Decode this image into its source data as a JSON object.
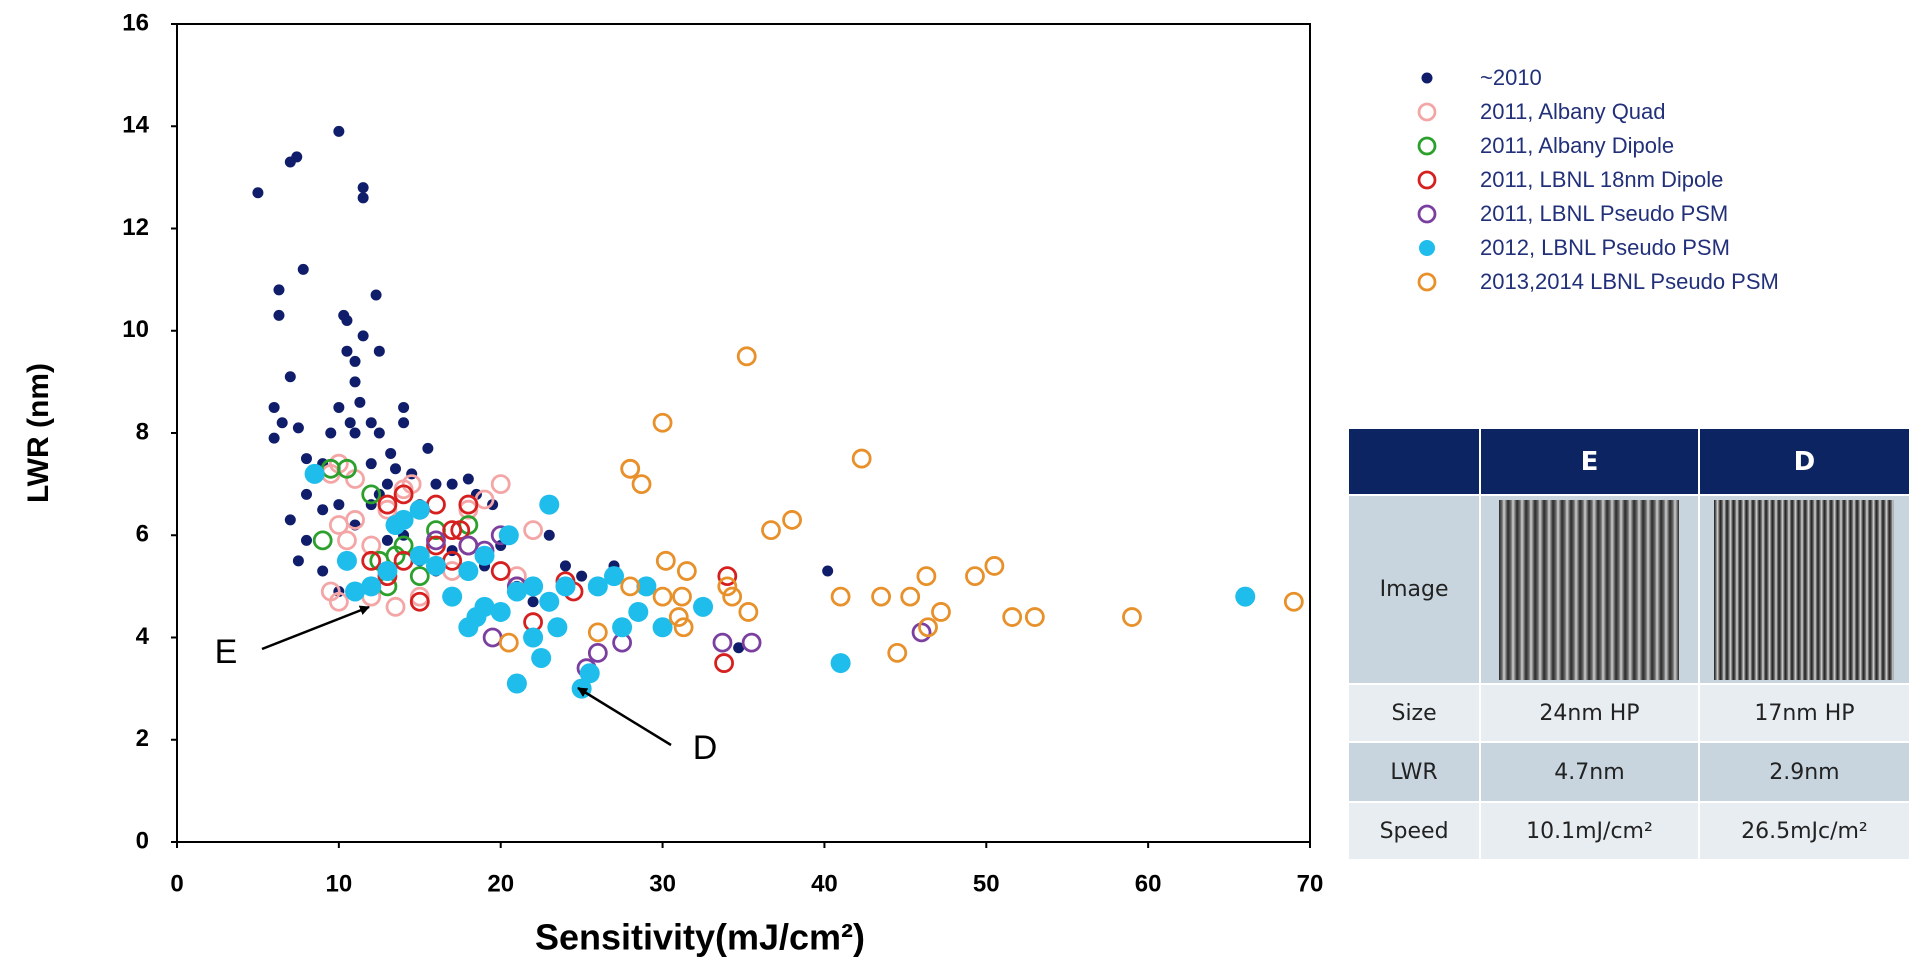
{
  "chart_data": {
    "type": "scatter",
    "x_label": "Sensitivity(mJ/cm²)",
    "y_label": "LWR (nm)",
    "xlim": [
      0,
      70
    ],
    "ylim": [
      0,
      16
    ],
    "xticks": [
      0,
      10,
      20,
      30,
      40,
      50,
      60,
      70
    ],
    "yticks": [
      0,
      2,
      4,
      6,
      8,
      10,
      12,
      14,
      16
    ],
    "grid": false,
    "annotations": [
      {
        "text": "E"
      },
      {
        "text": "D"
      }
    ],
    "series": [
      {
        "name": "~2010",
        "color": "#101d6b",
        "marker": "dot",
        "x": [
          5,
          6.3,
          6.3,
          7,
          7.4,
          7.8,
          6,
          6.5,
          7,
          7.5,
          6,
          7,
          7.5,
          8,
          9,
          10,
          11.5,
          11.5,
          12.3,
          10.3,
          10.5,
          10.5,
          11,
          11.5,
          12.5,
          11,
          11.3,
          12,
          11,
          12.5,
          13.2,
          13.5,
          14,
          14,
          13,
          14.5,
          15,
          15.5,
          16,
          17,
          18,
          18.5,
          19.5,
          10,
          11,
          12,
          9,
          8,
          9.5,
          10,
          10.7,
          12,
          12.5,
          13,
          14,
          15,
          16,
          17,
          19,
          20,
          21,
          22,
          23,
          24,
          25,
          27,
          29,
          40.2,
          34.7,
          10,
          8,
          9
        ],
        "values": [
          12.7,
          10.8,
          10.3,
          13.3,
          13.4,
          11.2,
          8.5,
          8.2,
          9.1,
          8.1,
          7.9,
          6.3,
          5.5,
          7.5,
          7.4,
          13.9,
          12.8,
          12.6,
          10.7,
          10.3,
          10.2,
          9.6,
          9.4,
          9.9,
          9.6,
          9.0,
          8.6,
          8.2,
          8.0,
          8.0,
          7.6,
          7.3,
          8.5,
          8.2,
          7.0,
          7.2,
          6.6,
          7.7,
          7.0,
          7.0,
          7.1,
          6.8,
          6.6,
          6.6,
          6.2,
          6.6,
          6.5,
          6.8,
          8.0,
          8.5,
          8.2,
          7.4,
          6.8,
          5.9,
          6.0,
          5.5,
          5.3,
          5.7,
          5.4,
          5.8,
          5.0,
          4.7,
          6.0,
          5.4,
          5.2,
          5.4,
          5.0,
          5.3,
          3.8,
          4.9,
          5.9,
          5.3
        ]
      },
      {
        "name": "2011, Albany Quad",
        "color": "#f4a6a6",
        "marker": "circle",
        "x": [
          9.5,
          10,
          11,
          10,
          10.5,
          11,
          12,
          13,
          14,
          14.5,
          20,
          22,
          28,
          9.5,
          10,
          12,
          13.5,
          17,
          18,
          19,
          21,
          15
        ],
        "values": [
          7.2,
          7.4,
          7.1,
          6.2,
          5.9,
          6.3,
          5.8,
          6.5,
          6.9,
          7.0,
          7.0,
          6.1,
          7.3,
          4.9,
          4.7,
          4.8,
          4.6,
          5.3,
          6.5,
          6.7,
          5.2,
          4.8
        ]
      },
      {
        "name": "2011, Albany Dipole",
        "color": "#2ca02c",
        "marker": "circle",
        "x": [
          9,
          9.5,
          10.5,
          12,
          12.5,
          13.5,
          14,
          15,
          16,
          18,
          13
        ],
        "values": [
          5.9,
          7.3,
          7.3,
          6.8,
          5.5,
          5.6,
          5.8,
          5.2,
          6.1,
          6.2,
          5.0
        ]
      },
      {
        "name": "2011, LBNL 18nm Dipole",
        "color": "#d62020",
        "marker": "circle",
        "x": [
          13,
          14,
          15,
          16,
          17,
          17.5,
          18,
          12,
          13,
          14,
          15,
          16,
          17,
          18,
          20,
          21,
          22,
          24,
          24.5,
          34,
          33.8
        ],
        "values": [
          6.6,
          6.8,
          6.5,
          6.6,
          6.1,
          6.1,
          6.6,
          5.5,
          5.2,
          5.5,
          4.7,
          5.8,
          5.5,
          5.8,
          5.3,
          5.0,
          4.3,
          5.1,
          4.9,
          5.2,
          3.5
        ]
      },
      {
        "name": "2011, LBNL Pseudo PSM",
        "color": "#7b3fa0",
        "marker": "circle",
        "x": [
          19.5,
          20,
          18,
          19,
          16,
          26,
          25.3,
          27.5,
          33.7,
          35.5,
          46,
          21
        ],
        "values": [
          4.0,
          6.0,
          5.8,
          5.7,
          5.9,
          3.7,
          3.4,
          3.9,
          3.9,
          3.9,
          4.1,
          5.0
        ]
      },
      {
        "name": "2012, LBNL Pseudo PSM",
        "color": "#1ebdec",
        "marker": "disc",
        "x": [
          8.5,
          10.5,
          11,
          12,
          13.5,
          14,
          15,
          16,
          17,
          18,
          18.5,
          18,
          19,
          19,
          20,
          20.5,
          21,
          21,
          22,
          22,
          22.5,
          23,
          23,
          23.5,
          24,
          25,
          25.5,
          26,
          27,
          27.5,
          28.5,
          29,
          30,
          32.5,
          41,
          66,
          15,
          13
        ],
        "values": [
          7.2,
          5.5,
          4.9,
          5.0,
          6.2,
          6.3,
          5.6,
          5.4,
          4.8,
          5.3,
          4.4,
          4.2,
          5.6,
          4.6,
          4.5,
          6.0,
          3.1,
          4.9,
          4.0,
          5.0,
          3.6,
          4.7,
          6.6,
          4.2,
          5.0,
          3.0,
          3.3,
          5.0,
          5.2,
          4.2,
          4.5,
          5.0,
          4.2,
          4.6,
          3.5,
          4.8,
          6.5,
          5.3
        ]
      },
      {
        "name": "2013,2014 LBNL Pseudo PSM",
        "color": "#e8902a",
        "marker": "circle",
        "x": [
          35.2,
          30,
          42.3,
          28,
          28.7,
          36.7,
          38,
          30.2,
          31.5,
          34,
          34.3,
          35.3,
          30,
          31.2,
          31,
          31.3,
          28,
          26,
          20.5,
          41,
          43.5,
          45.3,
          46.3,
          47.2,
          46.4,
          44.5,
          49.3,
          50.5,
          51.6,
          53,
          59,
          69
        ],
        "values": [
          9.5,
          8.2,
          7.5,
          7.3,
          7.0,
          6.1,
          6.3,
          5.5,
          5.3,
          5.0,
          4.8,
          4.5,
          4.8,
          4.8,
          4.4,
          4.2,
          5.0,
          4.1,
          3.9,
          4.8,
          4.8,
          4.8,
          5.2,
          4.5,
          4.2,
          3.7,
          5.2,
          5.4,
          4.4,
          4.4,
          4.4,
          4.7
        ]
      }
    ]
  },
  "table": {
    "columns": [
      "E",
      "D"
    ],
    "rows": [
      {
        "label": "Image"
      },
      {
        "label": "Size",
        "cells": [
          "24nm HP",
          "17nm HP"
        ]
      },
      {
        "label": "LWR",
        "cells": [
          "4.7nm",
          "2.9nm"
        ]
      },
      {
        "label": "Speed",
        "cells": [
          "10.1mJ/cm²",
          "26.5mJc/m²"
        ]
      }
    ]
  }
}
